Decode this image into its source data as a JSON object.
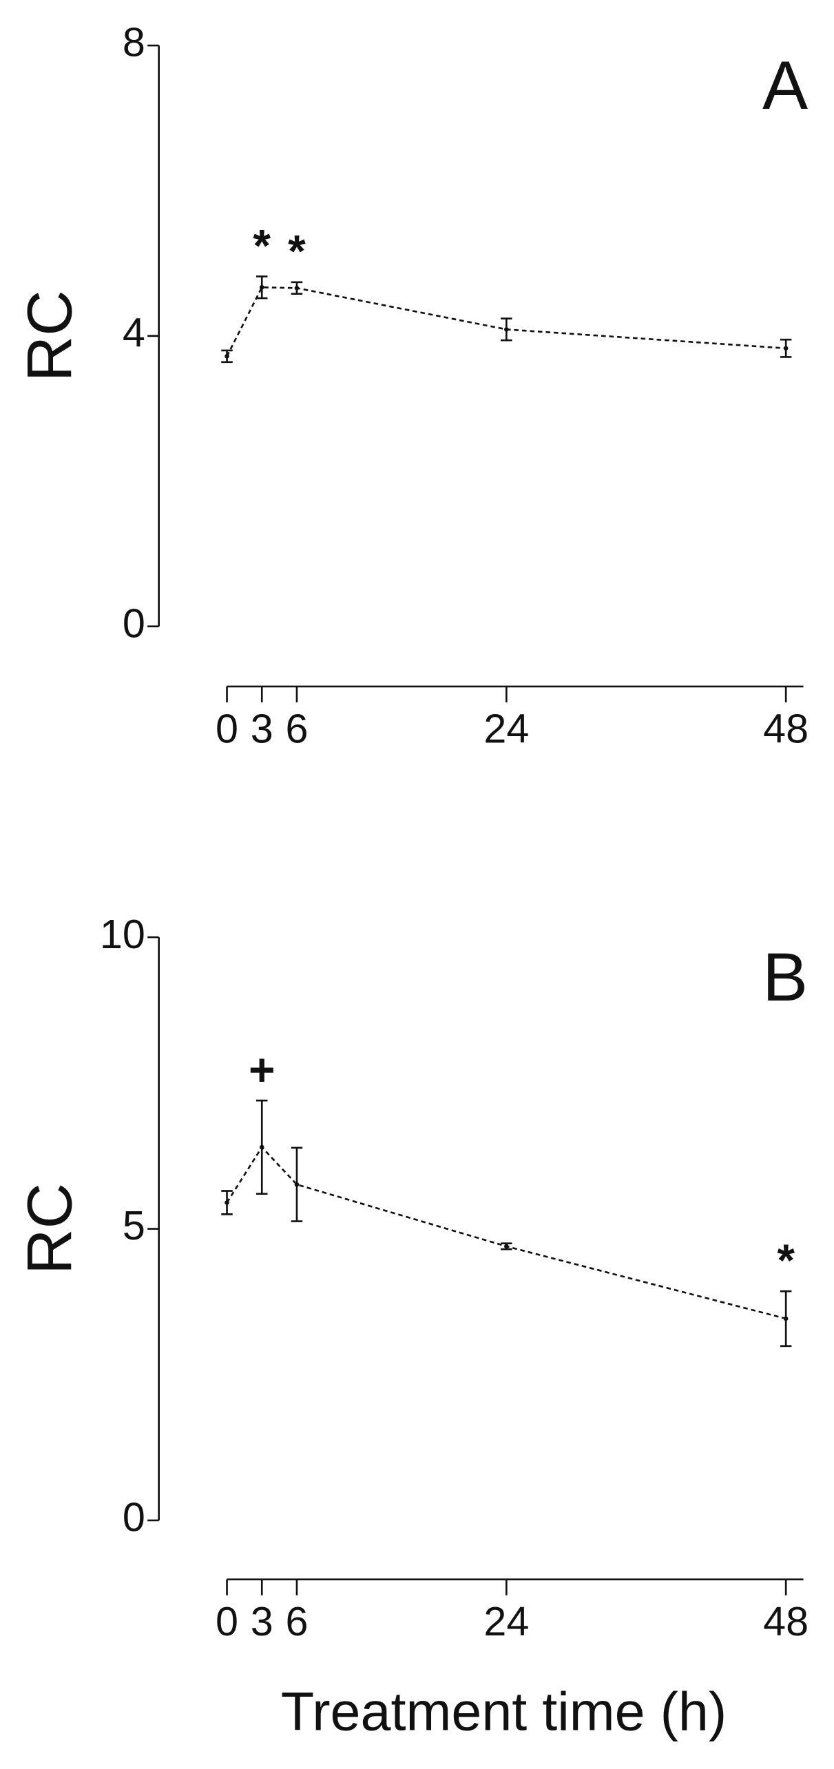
{
  "chart_data": [
    {
      "type": "line",
      "panel_label": "A",
      "ylabel": "RC",
      "x": [
        0,
        3,
        6,
        24,
        48
      ],
      "xlim": [
        0,
        49.5
      ],
      "xticks": [
        0,
        3,
        6,
        24,
        48
      ],
      "ylim": [
        0,
        8
      ],
      "yticks": [
        0,
        4,
        8
      ],
      "series": [
        {
          "color": "#111111",
          "values": [
            3.72,
            4.67,
            4.66,
            4.09,
            3.83
          ],
          "errors": [
            0.08,
            0.15,
            0.08,
            0.15,
            0.12
          ]
        }
      ],
      "annotations": [
        {
          "text": "*",
          "x": 3
        },
        {
          "text": "*",
          "x": 6
        }
      ]
    },
    {
      "type": "line",
      "panel_label": "B",
      "ylabel": "RC",
      "xlabel": "Treatment time (h)",
      "x": [
        0,
        3,
        6,
        24,
        48
      ],
      "xlim": [
        0,
        49.5
      ],
      "xticks": [
        0,
        3,
        6,
        24,
        48
      ],
      "ylim": [
        0,
        10
      ],
      "yticks": [
        0,
        5,
        10
      ],
      "series": [
        {
          "color": "#111111",
          "values": [
            5.45,
            6.4,
            5.76,
            4.7,
            3.46
          ],
          "errors": [
            0.2,
            0.8,
            0.63,
            0.05,
            0.47
          ]
        }
      ],
      "annotations": [
        {
          "text": "+",
          "x": 3
        },
        {
          "text": "*",
          "x": 48
        }
      ]
    }
  ]
}
